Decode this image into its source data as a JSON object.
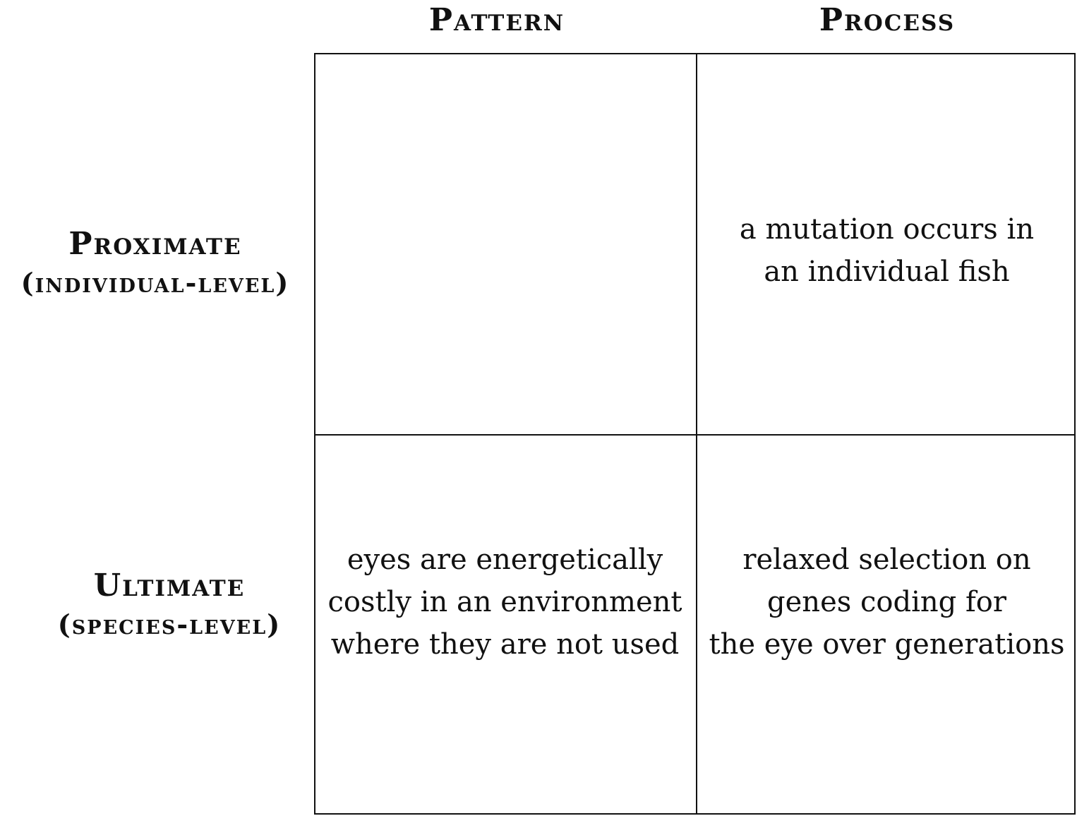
{
  "columns": {
    "pattern": "Pattern",
    "process": "Process"
  },
  "rows": {
    "proximate": {
      "title": "Proximate",
      "subtitle": "(individual-level)"
    },
    "ultimate": {
      "title": "Ultimate",
      "subtitle": "(species-level)"
    }
  },
  "cells": {
    "proximate_pattern": [],
    "proximate_process": [
      "a mutation occurs in",
      "an individual fish"
    ],
    "ultimate_pattern": [
      "eyes are energetically",
      "costly in an environment",
      "where they are not used"
    ],
    "ultimate_process": [
      "relaxed selection on",
      "genes coding for",
      "the eye over generations"
    ]
  }
}
